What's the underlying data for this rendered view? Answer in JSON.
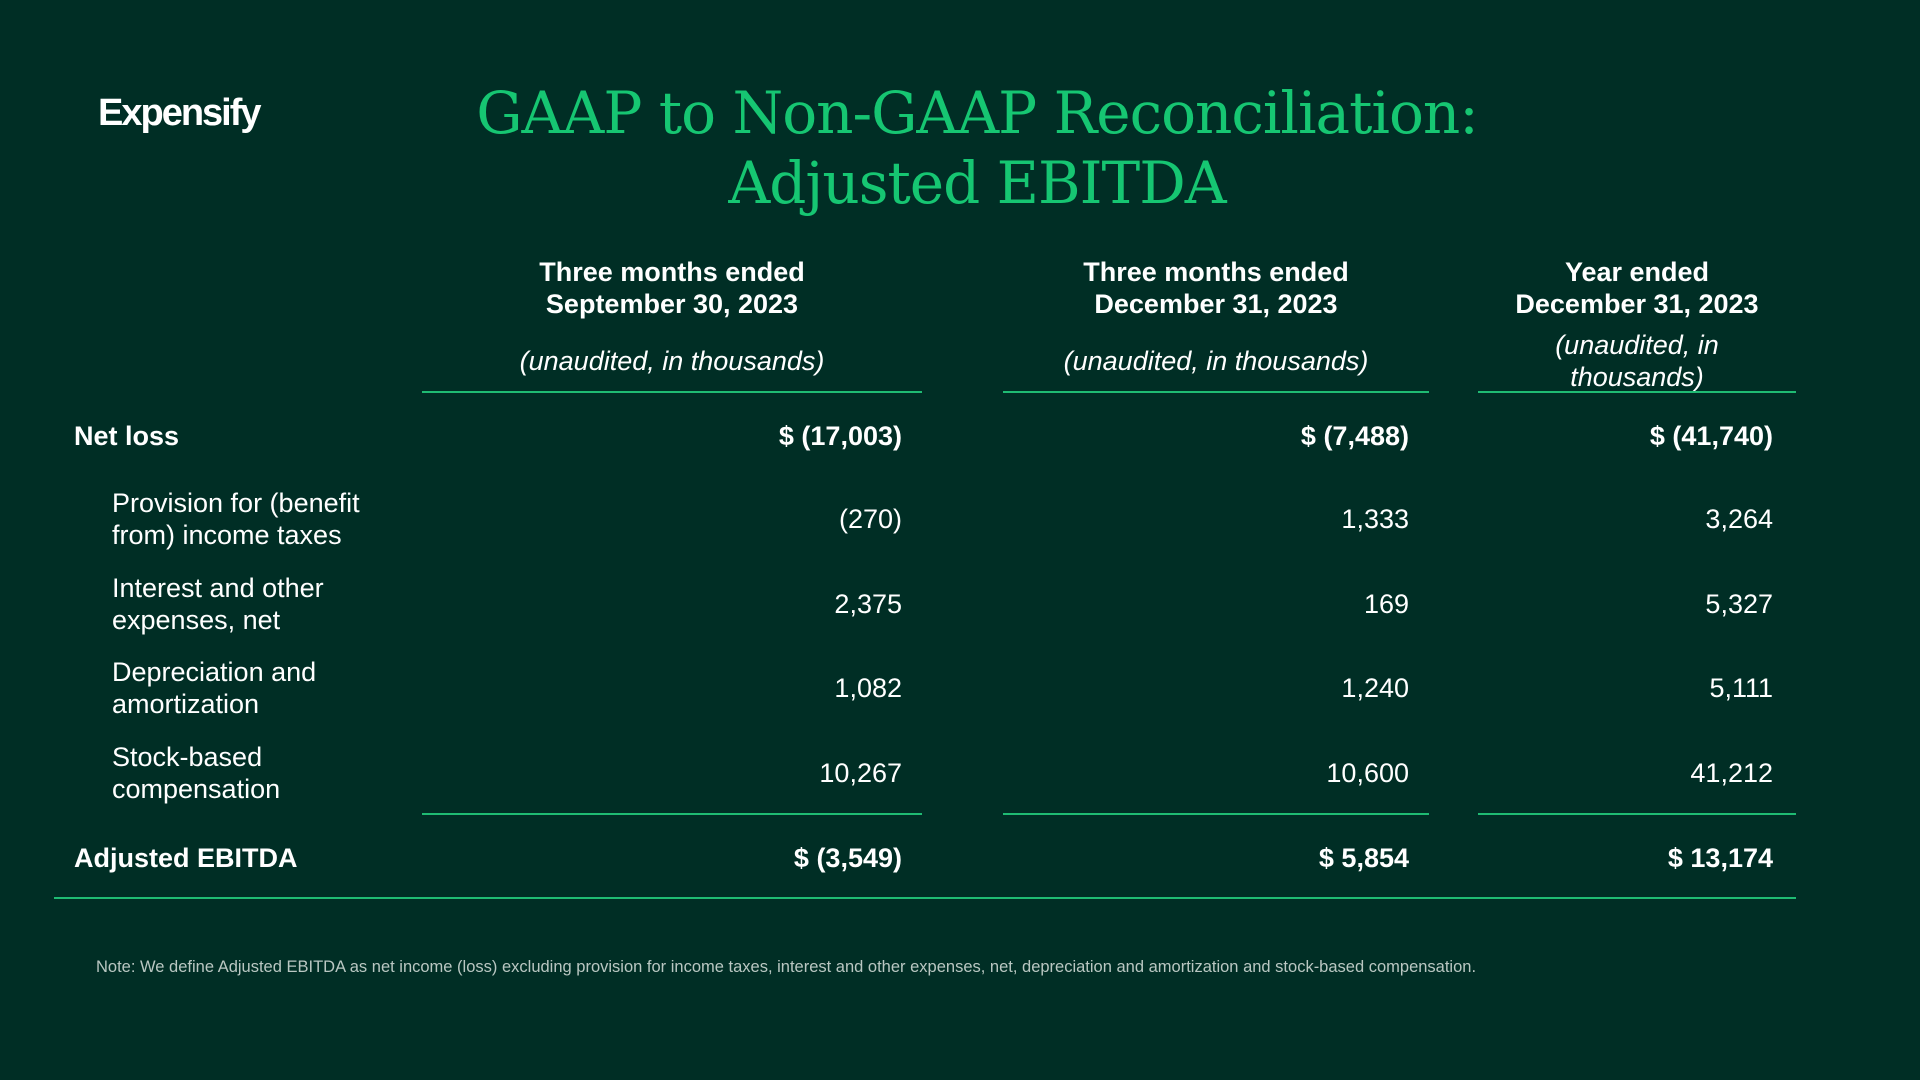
{
  "brand": {
    "logo": "Expensify",
    "accent_color": "#16c672",
    "background_color": "#002e25"
  },
  "title": {
    "line1": "GAAP to Non-GAAP Reconciliation:",
    "line2": "Adjusted EBITDA"
  },
  "columns": [
    {
      "line1": "Three months ended",
      "line2": "September 30, 2023",
      "sub": "(unaudited, in thousands)"
    },
    {
      "line1": "Three months ended",
      "line2": "December 31, 2023",
      "sub": "(unaudited, in thousands)"
    },
    {
      "line1": "Year ended",
      "line2": "December 31, 2023",
      "sub_line1": "(unaudited, in",
      "sub_line2": "thousands)"
    }
  ],
  "rows": {
    "net_loss": {
      "label": "Net loss",
      "values": [
        "$ (17,003)",
        "$ (7,488)",
        "$ (41,740)"
      ]
    },
    "taxes": {
      "label_line1": "Provision for (benefit",
      "label_line2": "from) income taxes",
      "values": [
        "(270)",
        "1,333",
        "3,264"
      ]
    },
    "interest": {
      "label_line1": "Interest and other",
      "label_line2": "expenses, net",
      "values": [
        "2,375",
        "169",
        "5,327"
      ]
    },
    "depreciation": {
      "label_line1": "Depreciation and",
      "label_line2": "amortization",
      "values": [
        "1,082",
        "1,240",
        "5,111"
      ]
    },
    "stock_comp": {
      "label_line1": "Stock-based",
      "label_line2": "compensation",
      "values": [
        "10,267",
        "10,600",
        "41,212"
      ]
    },
    "adjusted_ebitda": {
      "label": "Adjusted EBITDA",
      "values": [
        "$ (3,549)",
        "$ 5,854",
        "$ 13,174"
      ]
    }
  },
  "note": "Note: We define Adjusted EBITDA as net income (loss) excluding provision for income taxes, interest and other expenses, net, depreciation and amortization and stock-based compensation."
}
